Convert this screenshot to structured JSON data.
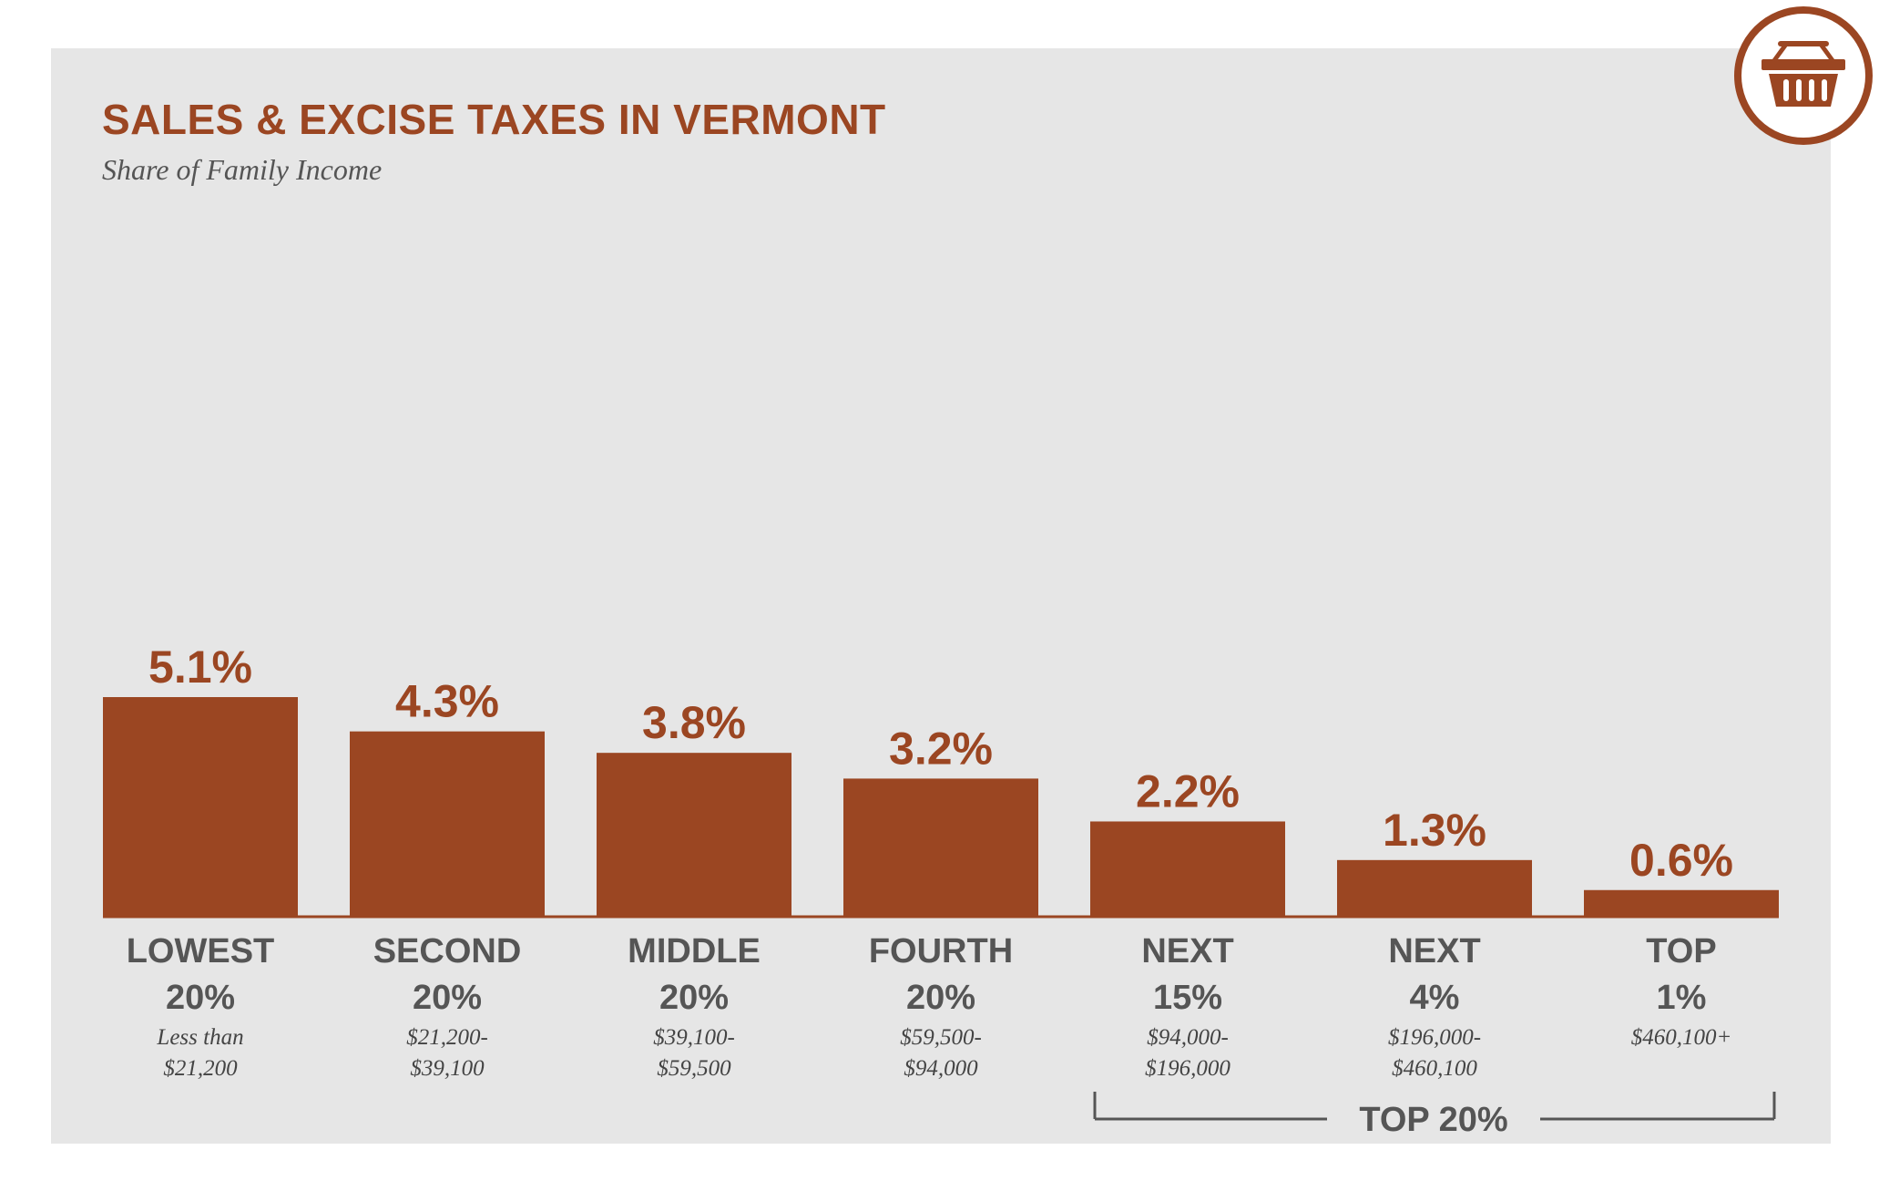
{
  "colors": {
    "accent": "#9b4622",
    "panel": "#e6e6e6",
    "label": "#555555",
    "bracket": "#555555"
  },
  "icon": {
    "name": "shopping-basket-icon"
  },
  "chart_data": {
    "type": "bar",
    "title": "SALES & EXCISE TAXES IN VERMONT",
    "subtitle": "Share of Family Income",
    "unit": "%",
    "ylim": [
      0,
      5.1
    ],
    "grid": false,
    "categories": [
      {
        "line1": "LOWEST",
        "line2": "20%",
        "range1": "Less than",
        "range2": "$21,200"
      },
      {
        "line1": "SECOND",
        "line2": "20%",
        "range1": "$21,200-",
        "range2": "$39,100"
      },
      {
        "line1": "MIDDLE",
        "line2": "20%",
        "range1": "$39,100-",
        "range2": "$59,500"
      },
      {
        "line1": "FOURTH",
        "line2": "20%",
        "range1": "$59,500-",
        "range2": "$94,000"
      },
      {
        "line1": "NEXT",
        "line2": "15%",
        "range1": "$94,000-",
        "range2": "$196,000"
      },
      {
        "line1": "NEXT",
        "line2": "4%",
        "range1": "$196,000-",
        "range2": "$460,100"
      },
      {
        "line1": "TOP",
        "line2": "1%",
        "range1": "$460,100+",
        "range2": ""
      }
    ],
    "values": [
      5.1,
      4.3,
      3.8,
      3.2,
      2.2,
      1.3,
      0.6
    ],
    "value_labels": [
      "5.1%",
      "4.3%",
      "3.8%",
      "3.2%",
      "2.2%",
      "1.3%",
      "0.6%"
    ],
    "group": {
      "label": "TOP 20%",
      "from_index": 4,
      "to_index": 6
    }
  }
}
